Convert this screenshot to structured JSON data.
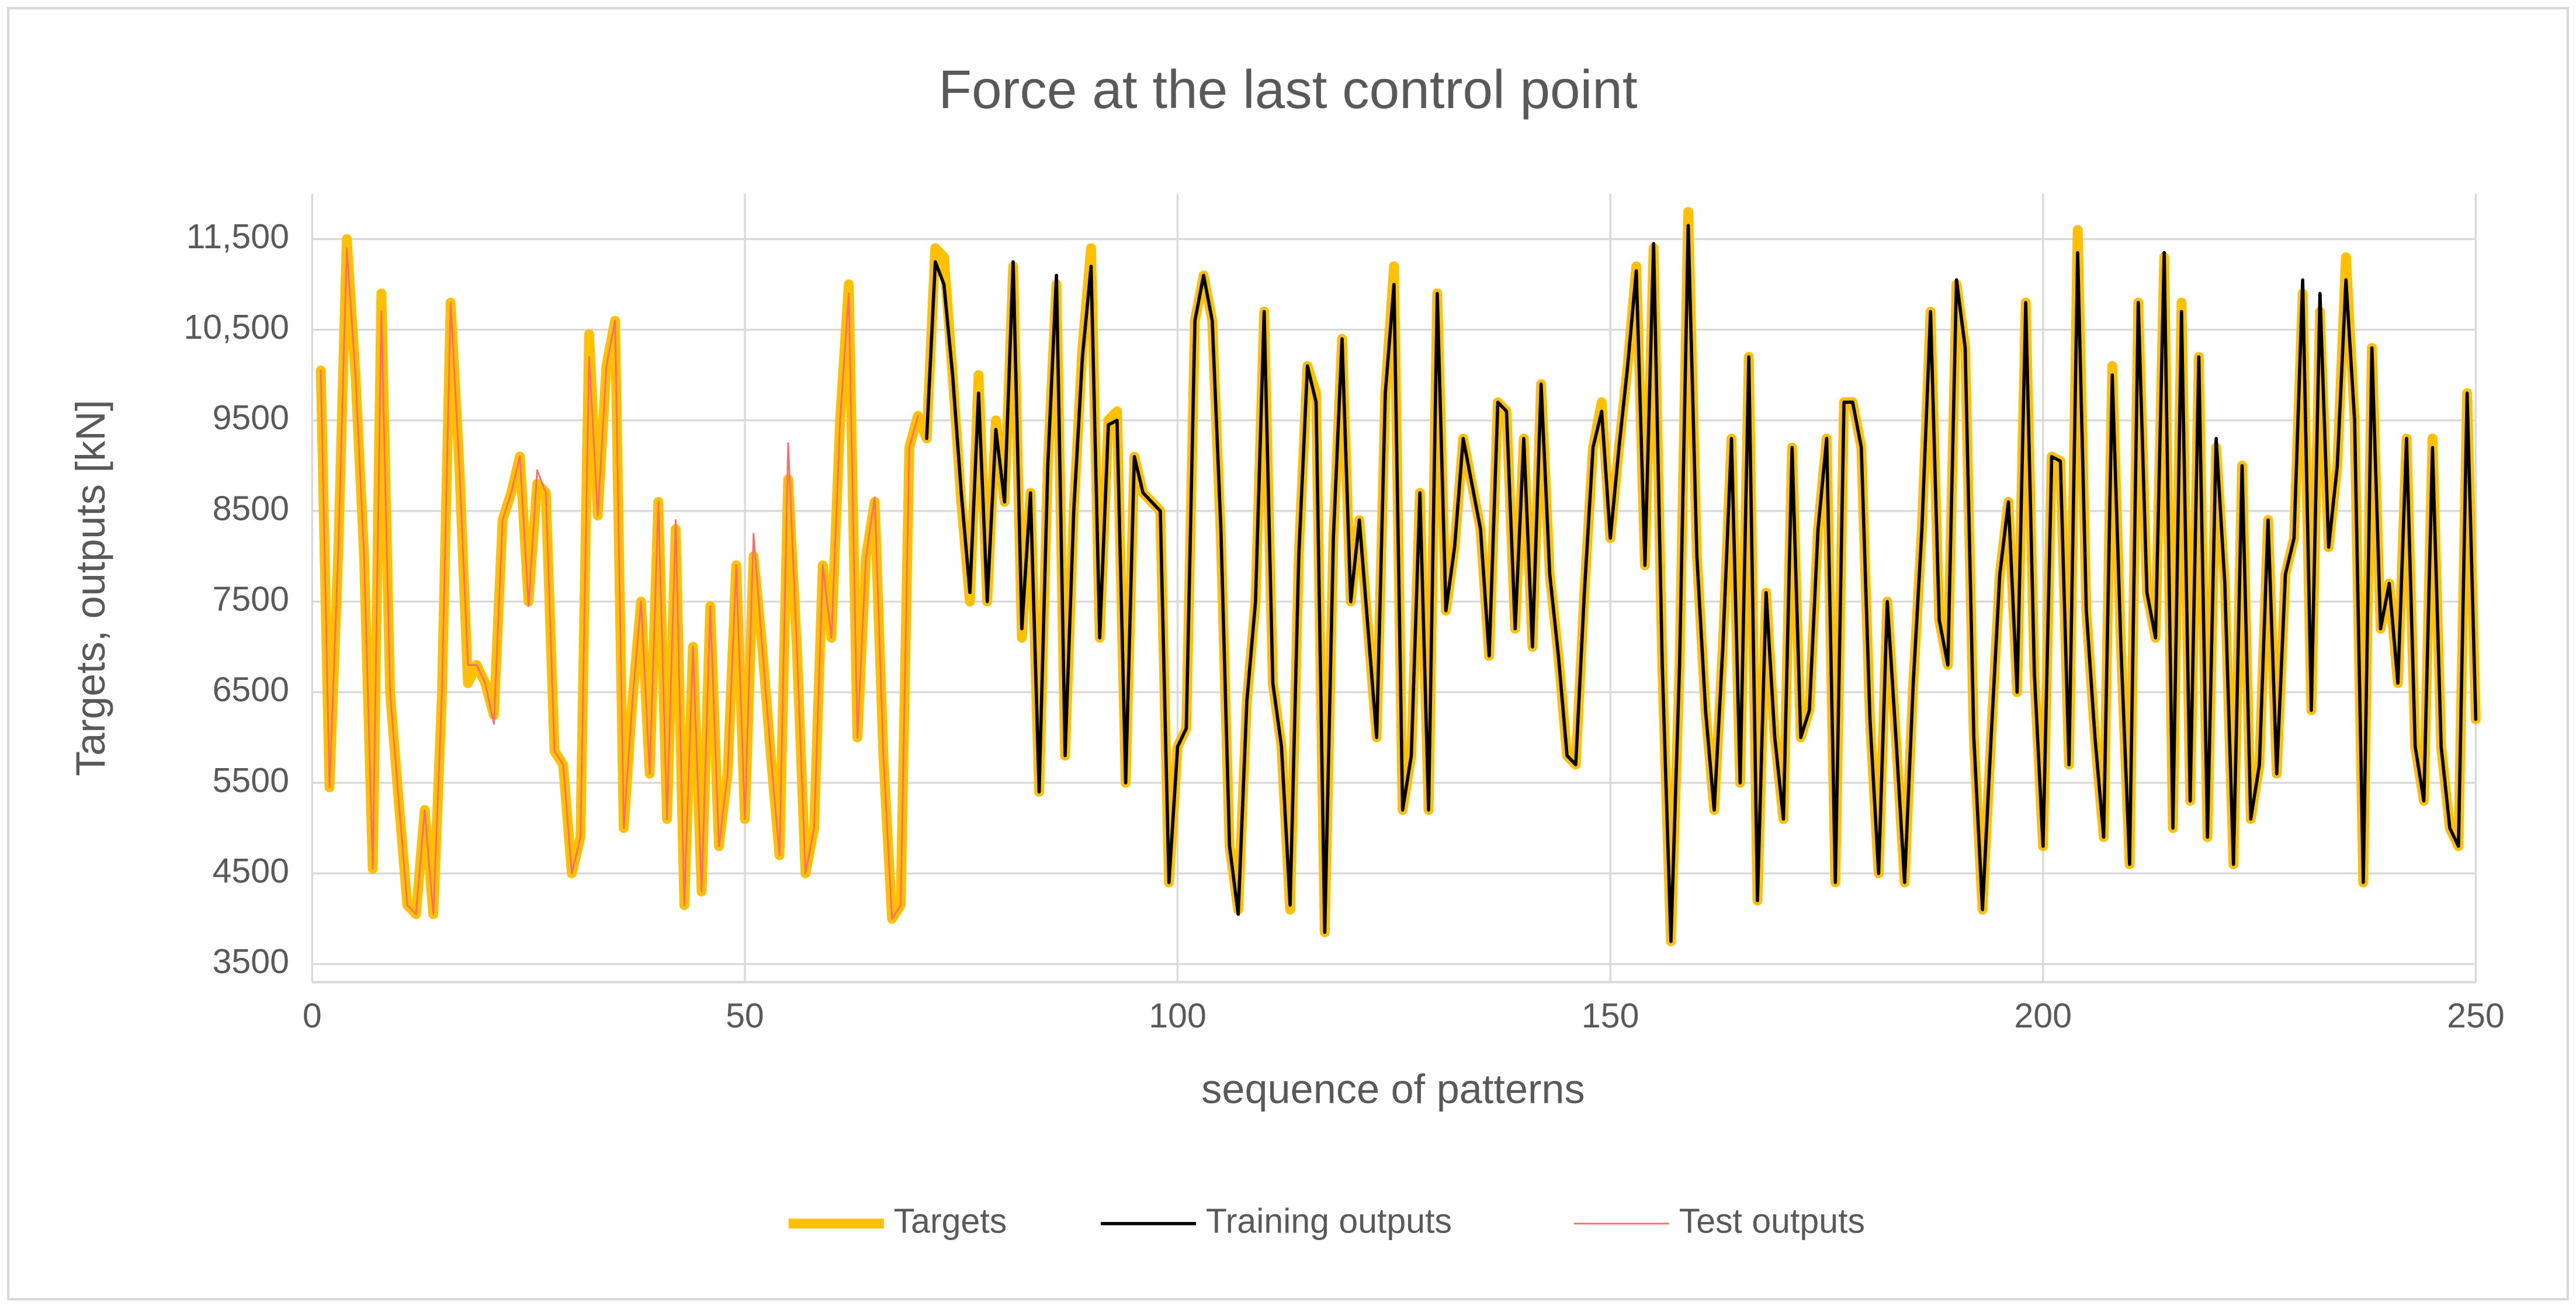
{
  "chart_data": {
    "type": "line",
    "title": "Force at the last control point",
    "x_label": "sequence of patterns",
    "y_label": "Targets, outputs [kN]",
    "xlim": [
      0,
      250
    ],
    "xticks": [
      0,
      50,
      100,
      150,
      200,
      250
    ],
    "ylim": [
      3300,
      12000
    ],
    "yticks": [
      3500,
      4500,
      5500,
      6500,
      7500,
      8500,
      9500,
      {
        "value": 10500,
        "label": "10,500"
      },
      {
        "value": 11500,
        "label": "11,500"
      }
    ],
    "grid": true,
    "legend": "bottom",
    "x": [
      1,
      2,
      3,
      4,
      5,
      6,
      7,
      8,
      9,
      10,
      11,
      12,
      13,
      14,
      15,
      16,
      17,
      18,
      19,
      20,
      21,
      22,
      23,
      24,
      25,
      26,
      27,
      28,
      29,
      30,
      31,
      32,
      33,
      34,
      35,
      36,
      37,
      38,
      39,
      40,
      41,
      42,
      43,
      44,
      45,
      46,
      47,
      48,
      49,
      50,
      51,
      52,
      53,
      54,
      55,
      56,
      57,
      58,
      59,
      60,
      61,
      62,
      63,
      64,
      65,
      66,
      67,
      68,
      69,
      70,
      71,
      72,
      73,
      74,
      75,
      76,
      77,
      78,
      79,
      80,
      81,
      82,
      83,
      84,
      85,
      86,
      87,
      88,
      89,
      90,
      91,
      92,
      93,
      94,
      95,
      96,
      97,
      98,
      99,
      100,
      101,
      102,
      103,
      104,
      105,
      106,
      107,
      108,
      109,
      110,
      111,
      112,
      113,
      114,
      115,
      116,
      117,
      118,
      119,
      120,
      121,
      122,
      123,
      124,
      125,
      126,
      127,
      128,
      129,
      130,
      131,
      132,
      133,
      134,
      135,
      136,
      137,
      138,
      139,
      140,
      141,
      142,
      143,
      144,
      145,
      146,
      147,
      148,
      149,
      150,
      151,
      152,
      153,
      154,
      155,
      156,
      157,
      158,
      159,
      160,
      161,
      162,
      163,
      164,
      165,
      166,
      167,
      168,
      169,
      170,
      171,
      172,
      173,
      174,
      175,
      176,
      177,
      178,
      179,
      180,
      181,
      182,
      183,
      184,
      185,
      186,
      187,
      188,
      189,
      190,
      191,
      192,
      193,
      194,
      195,
      196,
      197,
      198,
      199,
      200,
      201,
      202,
      203,
      204,
      205,
      206,
      207,
      208,
      209,
      210,
      211,
      212,
      213,
      214,
      215,
      216,
      217,
      218,
      219,
      220,
      221,
      222,
      223,
      224,
      225,
      226,
      227,
      228,
      229,
      230,
      231,
      232,
      233,
      234,
      235,
      236,
      237,
      238,
      239,
      240,
      241,
      242,
      243,
      244,
      245,
      246,
      247,
      248,
      249,
      250
    ],
    "series": [
      {
        "name": "Targets",
        "color": "#ffc000",
        "width": 6,
        "values": [
          10050,
          5450,
          8000,
          11500,
          10000,
          8000,
          4550,
          10900,
          6500,
          5300,
          4150,
          4050,
          5200,
          4050,
          6500,
          10800,
          9000,
          6600,
          6800,
          6600,
          6250,
          8400,
          8700,
          9100,
          7500,
          8800,
          8700,
          5850,
          5700,
          4500,
          4900,
          10450,
          8450,
          10100,
          10600,
          5000,
          6400,
          7500,
          5600,
          8600,
          5100,
          8300,
          4150,
          7000,
          4300,
          7450,
          4800,
          5600,
          7900,
          5100,
          8000,
          7000,
          5800,
          4700,
          8850,
          7000,
          4500,
          5000,
          7900,
          7100,
          9500,
          11000,
          6000,
          8000,
          8600,
          5800,
          4000,
          4150,
          9200,
          9550,
          9300,
          11400,
          11300,
          10000,
          8600,
          7500,
          10000,
          7500,
          9500,
          8600,
          11200,
          7100,
          8700,
          5400,
          9000,
          11000,
          5800,
          8500,
          10300,
          11400,
          7100,
          9500,
          9600,
          5500,
          9100,
          8700,
          8600,
          8500,
          4400,
          5900,
          6100,
          10600,
          11100,
          10600,
          8200,
          4800,
          4100,
          6400,
          7500,
          10700,
          6600,
          5900,
          4100,
          8000,
          10100,
          9800,
          3850,
          8200,
          10400,
          7500,
          8400,
          7200,
          6000,
          9800,
          11200,
          5200,
          5800,
          8700,
          5200,
          10900,
          7400,
          8100,
          9300,
          8800,
          8300,
          6900,
          9700,
          9600,
          7200,
          9300,
          7000,
          9900,
          7800,
          6900,
          5800,
          5700,
          7600,
          9200,
          9700,
          8200,
          9200,
          10100,
          11200,
          7900,
          11400,
          6800,
          3750,
          6800,
          11800,
          8000,
          6300,
          5200,
          7000,
          9300,
          5500,
          10200,
          4200,
          7600,
          6000,
          5100,
          9200,
          6000,
          6300,
          8300,
          9300,
          4400,
          9700,
          9700,
          9200,
          6200,
          4500,
          7500,
          6000,
          4400,
          6600,
          8300,
          10700,
          7300,
          6800,
          11000,
          10300,
          6000,
          4100,
          6000,
          7800,
          8600,
          6500,
          10800,
          6700,
          4800,
          9100,
          9050,
          5700,
          11600,
          7400,
          6000,
          4900,
          10100,
          7000,
          4600,
          10800,
          7600,
          7100,
          11300,
          5000,
          10800,
          5300,
          10200,
          4900,
          9200,
          7700,
          4600,
          9000,
          5100,
          5700,
          8400,
          5600,
          7800,
          8200,
          10900,
          6300,
          10700,
          8100,
          9000,
          11300,
          9500,
          4400,
          10300,
          7200,
          7700,
          6600,
          9300,
          5900,
          5300,
          9300,
          5900,
          5000,
          4800,
          9800,
          6200
        ]
      },
      {
        "name": "Training outputs",
        "color": "#000000",
        "width": 2,
        "values": [
          null,
          null,
          null,
          null,
          null,
          null,
          null,
          null,
          null,
          null,
          null,
          null,
          null,
          null,
          null,
          null,
          null,
          null,
          null,
          null,
          null,
          null,
          null,
          null,
          null,
          null,
          null,
          null,
          null,
          null,
          null,
          null,
          null,
          null,
          null,
          null,
          null,
          null,
          null,
          null,
          null,
          null,
          null,
          null,
          null,
          null,
          null,
          null,
          null,
          null,
          null,
          null,
          null,
          null,
          null,
          null,
          null,
          null,
          null,
          null,
          null,
          null,
          null,
          null,
          null,
          null,
          null,
          null,
          null,
          null,
          9300,
          11250,
          11000,
          10000,
          8700,
          7600,
          9800,
          7500,
          9400,
          8600,
          11250,
          7200,
          8700,
          5400,
          9000,
          11100,
          5800,
          8500,
          10200,
          11200,
          7100,
          9450,
          9500,
          5500,
          9100,
          8700,
          8600,
          8500,
          4400,
          5900,
          6100,
          10600,
          11100,
          10600,
          8300,
          4800,
          4050,
          6400,
          7500,
          10700,
          6600,
          5900,
          4150,
          8000,
          10100,
          9700,
          3850,
          8200,
          10400,
          7500,
          8400,
          7200,
          6000,
          9800,
          11000,
          5200,
          5800,
          8700,
          5200,
          10900,
          7400,
          8100,
          9300,
          8800,
          8300,
          6900,
          9700,
          9600,
          7200,
          9300,
          7000,
          9900,
          7800,
          6900,
          5800,
          5700,
          7600,
          9200,
          9600,
          8200,
          9200,
          10100,
          11150,
          7900,
          11450,
          6800,
          3750,
          6800,
          11650,
          8000,
          6300,
          5200,
          7000,
          9300,
          5500,
          10200,
          4200,
          7600,
          6000,
          5100,
          9200,
          6000,
          6300,
          8300,
          9300,
          4400,
          9700,
          9700,
          9200,
          6200,
          4500,
          7500,
          6000,
          4400,
          6600,
          8300,
          10700,
          7300,
          6800,
          11050,
          10300,
          6000,
          4100,
          6000,
          7800,
          8600,
          6500,
          10800,
          6700,
          4800,
          9100,
          9050,
          5700,
          11350,
          7400,
          6000,
          4900,
          10000,
          7000,
          4600,
          10800,
          7600,
          7100,
          11350,
          5000,
          10700,
          5300,
          10200,
          4900,
          9300,
          7700,
          4600,
          9000,
          5100,
          5700,
          8400,
          5600,
          7800,
          8200,
          11050,
          6300,
          10900,
          8100,
          9000,
          11050,
          9500,
          4400,
          10300,
          7200,
          7700,
          6600,
          9300,
          5900,
          5300,
          9200,
          5900,
          5000,
          4800,
          9800,
          6200
        ]
      },
      {
        "name": "Test outputs",
        "color": "#ff6b6b",
        "width": 1,
        "values": [
          10050,
          5450,
          8000,
          11400,
          10000,
          8000,
          4550,
          10700,
          6500,
          5300,
          4150,
          4050,
          5200,
          4050,
          6500,
          10800,
          9000,
          6800,
          6800,
          6600,
          6150,
          8400,
          8700,
          9100,
          7450,
          8950,
          8700,
          5850,
          5700,
          4500,
          4900,
          10200,
          8450,
          10100,
          10600,
          5000,
          6400,
          7500,
          5600,
          8600,
          5100,
          8400,
          4150,
          7000,
          4300,
          7450,
          4800,
          5600,
          7900,
          5100,
          8250,
          7000,
          5800,
          4700,
          9250,
          7000,
          4500,
          5000,
          7900,
          7100,
          9500,
          10900,
          6000,
          8000,
          8650,
          5800,
          4000,
          4150,
          9200,
          9550,
          null,
          null,
          null,
          null,
          null,
          null,
          null,
          null,
          null,
          null,
          null,
          null,
          null,
          null,
          null,
          null,
          null,
          null,
          null,
          null,
          null,
          null,
          null,
          null,
          null,
          null,
          null,
          null,
          null,
          null,
          null,
          null,
          null,
          null,
          null,
          null,
          null,
          null,
          null,
          null,
          null,
          null,
          null,
          null,
          null,
          null,
          null,
          null,
          null,
          null,
          null,
          null,
          null,
          null,
          null,
          null,
          null,
          null,
          null,
          null,
          null,
          null,
          null,
          null,
          null,
          null,
          null,
          null,
          null,
          null,
          null,
          null,
          null,
          null,
          null,
          null,
          null,
          null,
          null,
          null,
          null,
          null,
          null,
          null,
          null,
          null,
          null,
          null,
          null,
          null,
          null,
          null,
          null,
          null,
          null,
          null,
          null,
          null,
          null,
          null,
          null,
          null,
          null,
          null,
          null,
          null,
          null,
          null,
          null,
          null,
          null,
          null,
          null,
          null,
          null,
          null,
          null,
          null,
          null,
          null,
          null,
          null,
          null,
          null,
          null,
          null,
          null,
          null,
          null,
          null,
          null,
          null,
          null,
          null,
          null,
          null,
          null,
          null,
          null,
          null,
          null,
          null,
          null,
          null,
          null,
          null,
          null,
          null,
          null,
          null,
          null,
          null,
          null,
          null,
          null,
          null,
          null,
          null,
          null,
          null,
          null,
          null,
          null,
          null,
          null,
          null,
          null,
          null,
          null,
          null,
          null,
          null,
          null,
          null,
          null,
          null,
          null,
          null,
          null,
          null
        ]
      }
    ]
  }
}
